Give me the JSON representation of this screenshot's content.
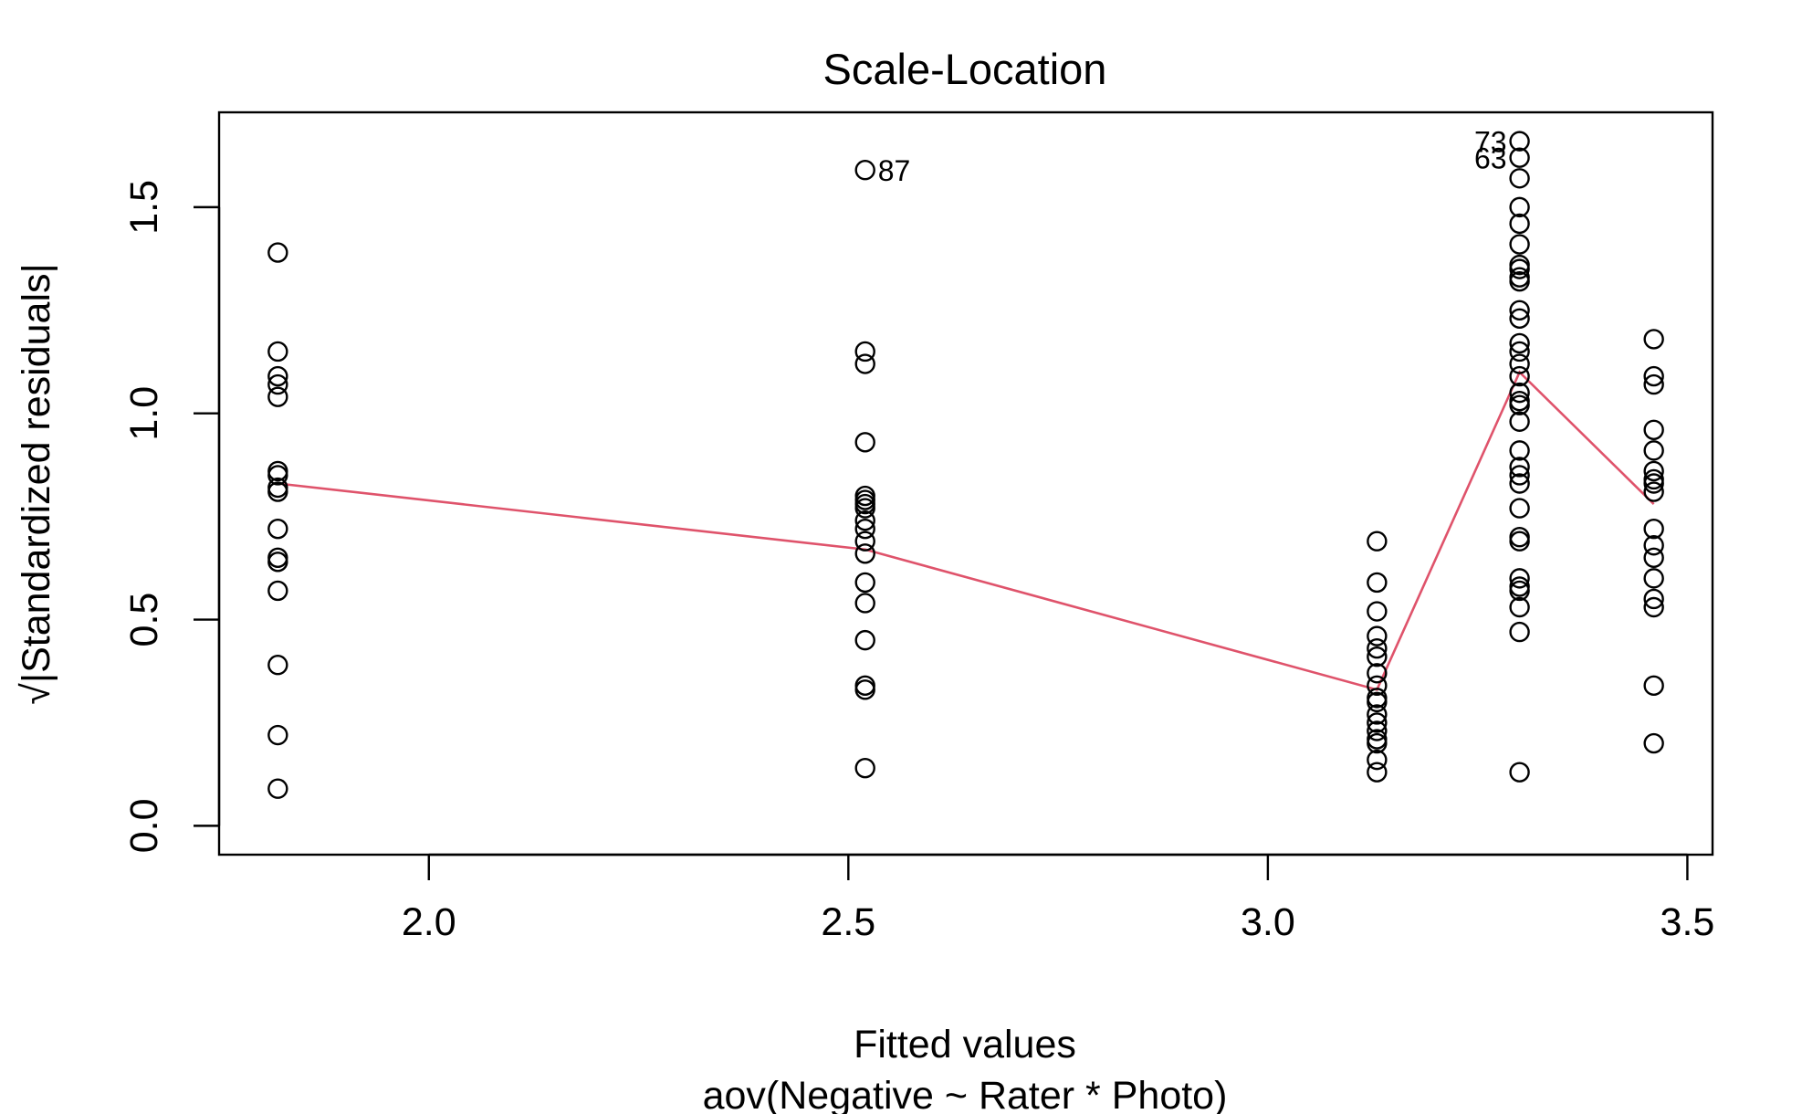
{
  "chart_data": {
    "type": "scatter",
    "title": "Scale-Location",
    "xlabel": "Fitted values",
    "subtitle": "aov(Negative ~ Rater * Photo)",
    "ylabel": "√|Standardized residuals|",
    "xlim": [
      1.75,
      3.53
    ],
    "ylim": [
      -0.07,
      1.73
    ],
    "x_ticks": [
      2.0,
      2.5,
      3.0,
      3.5
    ],
    "x_tick_labels": [
      "2.0",
      "2.5",
      "3.0",
      "3.5"
    ],
    "y_ticks": [
      0.0,
      0.5,
      1.0,
      1.5
    ],
    "y_tick_labels": [
      "0.0",
      "0.5",
      "1.0",
      "1.5"
    ],
    "grid": false,
    "colors": {
      "points": "#000000",
      "smoother": "#DF536B"
    },
    "points": [
      {
        "x": 1.82,
        "y": 1.39
      },
      {
        "x": 1.82,
        "y": 1.15
      },
      {
        "x": 1.82,
        "y": 1.09
      },
      {
        "x": 1.82,
        "y": 1.07
      },
      {
        "x": 1.82,
        "y": 1.04
      },
      {
        "x": 1.82,
        "y": 0.86
      },
      {
        "x": 1.82,
        "y": 0.85
      },
      {
        "x": 1.82,
        "y": 0.82
      },
      {
        "x": 1.82,
        "y": 0.81
      },
      {
        "x": 1.82,
        "y": 0.72
      },
      {
        "x": 1.82,
        "y": 0.65
      },
      {
        "x": 1.82,
        "y": 0.64
      },
      {
        "x": 1.82,
        "y": 0.57
      },
      {
        "x": 1.82,
        "y": 0.39
      },
      {
        "x": 1.82,
        "y": 0.22
      },
      {
        "x": 1.82,
        "y": 0.09
      },
      {
        "x": 2.52,
        "y": 1.59
      },
      {
        "x": 2.52,
        "y": 1.15
      },
      {
        "x": 2.52,
        "y": 1.12
      },
      {
        "x": 2.52,
        "y": 0.93
      },
      {
        "x": 2.52,
        "y": 0.8
      },
      {
        "x": 2.52,
        "y": 0.79
      },
      {
        "x": 2.52,
        "y": 0.78
      },
      {
        "x": 2.52,
        "y": 0.77
      },
      {
        "x": 2.52,
        "y": 0.74
      },
      {
        "x": 2.52,
        "y": 0.72
      },
      {
        "x": 2.52,
        "y": 0.69
      },
      {
        "x": 2.52,
        "y": 0.66
      },
      {
        "x": 2.52,
        "y": 0.59
      },
      {
        "x": 2.52,
        "y": 0.54
      },
      {
        "x": 2.52,
        "y": 0.45
      },
      {
        "x": 2.52,
        "y": 0.34
      },
      {
        "x": 2.52,
        "y": 0.33
      },
      {
        "x": 2.52,
        "y": 0.14
      },
      {
        "x": 3.13,
        "y": 0.69
      },
      {
        "x": 3.13,
        "y": 0.59
      },
      {
        "x": 3.13,
        "y": 0.52
      },
      {
        "x": 3.13,
        "y": 0.46
      },
      {
        "x": 3.13,
        "y": 0.43
      },
      {
        "x": 3.13,
        "y": 0.41
      },
      {
        "x": 3.13,
        "y": 0.37
      },
      {
        "x": 3.13,
        "y": 0.34
      },
      {
        "x": 3.13,
        "y": 0.31
      },
      {
        "x": 3.13,
        "y": 0.3
      },
      {
        "x": 3.13,
        "y": 0.27
      },
      {
        "x": 3.13,
        "y": 0.25
      },
      {
        "x": 3.13,
        "y": 0.23
      },
      {
        "x": 3.13,
        "y": 0.21
      },
      {
        "x": 3.13,
        "y": 0.2
      },
      {
        "x": 3.13,
        "y": 0.16
      },
      {
        "x": 3.13,
        "y": 0.13
      },
      {
        "x": 3.3,
        "y": 1.66
      },
      {
        "x": 3.3,
        "y": 1.62
      },
      {
        "x": 3.3,
        "y": 1.57
      },
      {
        "x": 3.3,
        "y": 1.5
      },
      {
        "x": 3.3,
        "y": 1.46
      },
      {
        "x": 3.3,
        "y": 1.41
      },
      {
        "x": 3.3,
        "y": 1.36
      },
      {
        "x": 3.3,
        "y": 1.35
      },
      {
        "x": 3.3,
        "y": 1.33
      },
      {
        "x": 3.3,
        "y": 1.32
      },
      {
        "x": 3.3,
        "y": 1.25
      },
      {
        "x": 3.3,
        "y": 1.23
      },
      {
        "x": 3.3,
        "y": 1.17
      },
      {
        "x": 3.3,
        "y": 1.15
      },
      {
        "x": 3.3,
        "y": 1.12
      },
      {
        "x": 3.3,
        "y": 1.09
      },
      {
        "x": 3.3,
        "y": 1.05
      },
      {
        "x": 3.3,
        "y": 1.03
      },
      {
        "x": 3.3,
        "y": 1.02
      },
      {
        "x": 3.3,
        "y": 0.98
      },
      {
        "x": 3.3,
        "y": 0.91
      },
      {
        "x": 3.3,
        "y": 0.87
      },
      {
        "x": 3.3,
        "y": 0.85
      },
      {
        "x": 3.3,
        "y": 0.83
      },
      {
        "x": 3.3,
        "y": 0.77
      },
      {
        "x": 3.3,
        "y": 0.7
      },
      {
        "x": 3.3,
        "y": 0.69
      },
      {
        "x": 3.3,
        "y": 0.6
      },
      {
        "x": 3.3,
        "y": 0.58
      },
      {
        "x": 3.3,
        "y": 0.57
      },
      {
        "x": 3.3,
        "y": 0.53
      },
      {
        "x": 3.3,
        "y": 0.47
      },
      {
        "x": 3.3,
        "y": 0.13
      },
      {
        "x": 3.46,
        "y": 1.18
      },
      {
        "x": 3.46,
        "y": 1.09
      },
      {
        "x": 3.46,
        "y": 1.07
      },
      {
        "x": 3.46,
        "y": 0.96
      },
      {
        "x": 3.46,
        "y": 0.91
      },
      {
        "x": 3.46,
        "y": 0.86
      },
      {
        "x": 3.46,
        "y": 0.84
      },
      {
        "x": 3.46,
        "y": 0.83
      },
      {
        "x": 3.46,
        "y": 0.81
      },
      {
        "x": 3.46,
        "y": 0.72
      },
      {
        "x": 3.46,
        "y": 0.68
      },
      {
        "x": 3.46,
        "y": 0.65
      },
      {
        "x": 3.46,
        "y": 0.6
      },
      {
        "x": 3.46,
        "y": 0.55
      },
      {
        "x": 3.46,
        "y": 0.53
      },
      {
        "x": 3.46,
        "y": 0.34
      },
      {
        "x": 3.46,
        "y": 0.2
      }
    ],
    "point_labels": [
      {
        "text": "87",
        "x": 2.52,
        "y": 1.59,
        "side": "right"
      },
      {
        "text": "73",
        "x": 3.3,
        "y": 1.66,
        "side": "left"
      },
      {
        "text": "63",
        "x": 3.3,
        "y": 1.62,
        "side": "left"
      }
    ],
    "smoother": {
      "x": [
        1.82,
        2.52,
        3.13,
        3.3,
        3.46
      ],
      "y": [
        0.83,
        0.67,
        0.33,
        1.1,
        0.78
      ]
    }
  }
}
